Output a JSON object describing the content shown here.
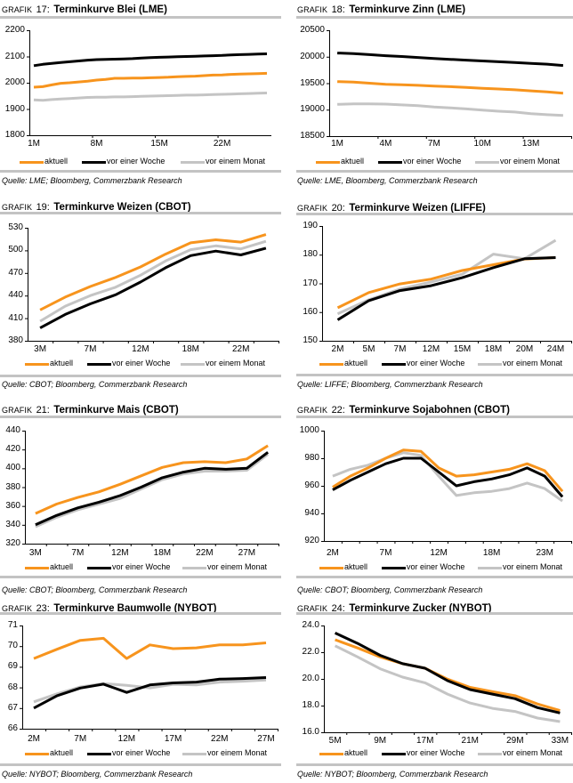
{
  "chart_data": [
    {
      "id": "grafik-17",
      "type": "line",
      "figure_prefix": "GRAFIK",
      "figure_number": "17:",
      "title": "Terminkurve Blei (LME)",
      "xlabel": "",
      "ylabel": "",
      "grid": false,
      "legend": "bottom",
      "categories": [
        "1M",
        "",
        "",
        "",
        "",
        "",
        "",
        "8M",
        "",
        "",
        "",
        "",
        "",
        "",
        "15M",
        "",
        "",
        "",
        "",
        "",
        "",
        "22M",
        "",
        "",
        "",
        "",
        ""
      ],
      "ylim": [
        1800,
        2200
      ],
      "ystep": 100,
      "ytick_labels": [
        "1800",
        "1900",
        "2000",
        "2100",
        "2200"
      ],
      "series": [
        {
          "name": "aktuell",
          "color": "#F7941D",
          "values": [
            1983,
            1985,
            1992,
            1998,
            2000,
            2003,
            2006,
            2010,
            2013,
            2017,
            2017,
            2018,
            2018,
            2019,
            2020,
            2021,
            2023,
            2024,
            2025,
            2027,
            2029,
            2030,
            2032,
            2033,
            2034,
            2035,
            2036
          ]
        },
        {
          "name": "vor einer Woche",
          "color": "#000000",
          "values": [
            2065,
            2070,
            2074,
            2077,
            2080,
            2083,
            2086,
            2088,
            2089,
            2090,
            2091,
            2092,
            2094,
            2096,
            2097,
            2098,
            2099,
            2100,
            2101,
            2102,
            2103,
            2104,
            2106,
            2107,
            2108,
            2109,
            2110
          ]
        },
        {
          "name": "vor einem Monat",
          "color": "#C4C4C4",
          "values": [
            1935,
            1933,
            1936,
            1938,
            1940,
            1942,
            1944,
            1945,
            1945,
            1946,
            1946,
            1947,
            1948,
            1949,
            1950,
            1951,
            1952,
            1953,
            1953,
            1954,
            1955,
            1956,
            1957,
            1958,
            1959,
            1960,
            1961
          ]
        }
      ],
      "source": "Quelle: LME; Bloomberg, Commerzbank Research"
    },
    {
      "id": "grafik-18",
      "type": "line",
      "figure_prefix": "GRAFIK",
      "figure_number": "18:",
      "title": "Terminkurve Zinn (LME)",
      "xlabel": "",
      "ylabel": "",
      "grid": false,
      "legend": "bottom",
      "categories": [
        "1M",
        "",
        "",
        "4M",
        "",
        "",
        "7M",
        "",
        "",
        "10M",
        "",
        "",
        "13M",
        "",
        ""
      ],
      "ylim": [
        18500,
        20500
      ],
      "ystep": 500,
      "ytick_labels": [
        "18500",
        "19000",
        "19500",
        "20000",
        "20500"
      ],
      "series": [
        {
          "name": "aktuell",
          "color": "#F7941D",
          "values": [
            19530,
            19520,
            19500,
            19480,
            19470,
            19460,
            19445,
            19435,
            19420,
            19405,
            19390,
            19375,
            19355,
            19335,
            19310
          ]
        },
        {
          "name": "vor einer Woche",
          "color": "#000000",
          "values": [
            20070,
            20060,
            20040,
            20020,
            20005,
            19985,
            19965,
            19950,
            19935,
            19920,
            19905,
            19890,
            19875,
            19860,
            19835
          ]
        },
        {
          "name": "vor einem Monat",
          "color": "#C4C4C4",
          "values": [
            19100,
            19110,
            19110,
            19105,
            19090,
            19075,
            19050,
            19035,
            19015,
            18990,
            18970,
            18955,
            18925,
            18905,
            18890
          ]
        }
      ],
      "source": "Quelle: LME, Bloomberg, Commerzbank Research"
    },
    {
      "id": "grafik-19",
      "type": "line",
      "figure_prefix": "GRAFIK",
      "figure_number": "19:",
      "title": "Terminkurve Weizen (CBOT)",
      "xlabel": "",
      "ylabel": "",
      "grid": false,
      "legend": "bottom",
      "categories": [
        "3M",
        "",
        "7M",
        "",
        "12M",
        "",
        "18M",
        "",
        "22M",
        ""
      ],
      "ylim": [
        380,
        530
      ],
      "ystep": 30,
      "ytick_labels": [
        "380",
        "410",
        "440",
        "470",
        "500",
        "530"
      ],
      "series": [
        {
          "name": "aktuell",
          "color": "#F7941D",
          "values": [
            421,
            438,
            452,
            464,
            478,
            495,
            510,
            514,
            511,
            521
          ]
        },
        {
          "name": "vor einer Woche",
          "color": "#000000",
          "values": [
            397,
            415,
            429,
            441,
            458,
            477,
            493,
            499,
            494,
            503
          ]
        },
        {
          "name": "vor einem Monat",
          "color": "#C4C4C4",
          "values": [
            406,
            426,
            440,
            451,
            467,
            486,
            501,
            506,
            502,
            512
          ]
        }
      ],
      "source": "Quelle: CBOT; Bloomberg, Commerzbank Research"
    },
    {
      "id": "grafik-20",
      "type": "line",
      "figure_prefix": "GRAFIK",
      "figure_number": "20:",
      "title": "Terminkurve Weizen (LIFFE)",
      "xlabel": "",
      "ylabel": "",
      "grid": false,
      "legend": "bottom",
      "categories": [
        "2M",
        "5M",
        "7M",
        "12M",
        "15M",
        "18M",
        "20M",
        "24M"
      ],
      "ylim": [
        150,
        190
      ],
      "ystep": 10,
      "ytick_labels": [
        "150",
        "160",
        "170",
        "180",
        "190"
      ],
      "series": [
        {
          "name": "aktuell",
          "color": "#F7941D",
          "values": [
            161.5,
            166.8,
            169.8,
            171.5,
            174.5,
            176.5,
            178.5,
            179.0
          ]
        },
        {
          "name": "vor einer Woche",
          "color": "#000000",
          "values": [
            157.3,
            164.0,
            167.5,
            169.2,
            172.0,
            175.5,
            178.6,
            179.0
          ]
        },
        {
          "name": "vor einem Monat",
          "color": "#C4C4C4",
          "values": [
            159.4,
            164.3,
            168.0,
            170.5,
            173.2,
            180.2,
            178.6,
            185.0
          ]
        }
      ],
      "source": "Quelle: LIFFE; Bloomberg, Commerzbank Research"
    },
    {
      "id": "grafik-21",
      "type": "line",
      "figure_prefix": "GRAFIK",
      "figure_number": "21:",
      "title": "Terminkurve Mais (CBOT)",
      "xlabel": "",
      "ylabel": "",
      "grid": false,
      "legend": "bottom",
      "categories": [
        "3M",
        "",
        "7M",
        "",
        "12M",
        "",
        "18M",
        "",
        "22M",
        "",
        "27M",
        ""
      ],
      "ylim": [
        320,
        440
      ],
      "ystep": 20,
      "ytick_labels": [
        "320",
        "340",
        "360",
        "380",
        "400",
        "420",
        "440"
      ],
      "series": [
        {
          "name": "aktuell",
          "color": "#F7941D",
          "values": [
            352,
            362,
            369,
            375,
            383,
            392,
            401,
            406,
            407,
            406,
            410,
            424
          ]
        },
        {
          "name": "vor einer Woche",
          "color": "#000000",
          "values": [
            340,
            350,
            358,
            364,
            371,
            380,
            390,
            396,
            400,
            399,
            400,
            417
          ]
        },
        {
          "name": "vor einem Monat",
          "color": "#C4C4C4",
          "values": [
            338,
            348,
            356,
            362,
            368,
            378,
            388,
            394,
            397,
            397,
            398,
            415
          ]
        }
      ],
      "source": "Quelle: CBOT; Bloomberg, Commerzbank Research"
    },
    {
      "id": "grafik-22",
      "type": "line",
      "figure_prefix": "GRAFIK",
      "figure_number": "22:",
      "title": "Terminkurve Sojabohnen (CBOT)",
      "xlabel": "",
      "ylabel": "",
      "grid": false,
      "legend": "bottom",
      "categories": [
        "2M",
        "",
        "",
        "7M",
        "",
        "",
        "12M",
        "",
        "",
        "18M",
        "",
        "",
        "23M",
        ""
      ],
      "ylim": [
        920,
        1000
      ],
      "ystep": 20,
      "ytick_labels": [
        "920",
        "940",
        "960",
        "980",
        "1000"
      ],
      "series": [
        {
          "name": "aktuell",
          "color": "#F7941D",
          "values": [
            959,
            967,
            973,
            980,
            986,
            985,
            973,
            967,
            968,
            970,
            972,
            976,
            971,
            956
          ]
        },
        {
          "name": "vor einer Woche",
          "color": "#000000",
          "values": [
            957,
            964,
            970,
            976,
            980,
            980,
            970,
            960,
            963,
            965,
            968,
            973,
            967,
            952
          ]
        },
        {
          "name": "vor einem Monat",
          "color": "#C4C4C4",
          "values": [
            967,
            972,
            975,
            980,
            984,
            982,
            967,
            953,
            955,
            956,
            958,
            962,
            958,
            949
          ]
        }
      ],
      "source": "Quelle: CBOT; Bloomberg, Commerzbank Research"
    },
    {
      "id": "grafik-23",
      "type": "line",
      "figure_prefix": "GRAFIK",
      "figure_number": "23:",
      "title": "Terminkurve Baumwolle (NYBOT)",
      "xlabel": "",
      "ylabel": "",
      "grid": false,
      "legend": "bottom",
      "categories": [
        "2M",
        "",
        "7M",
        "",
        "12M",
        "",
        "17M",
        "",
        "22M",
        "",
        "27M"
      ],
      "ylim": [
        66,
        71
      ],
      "ystep": 1,
      "ytick_labels": [
        "66",
        "67",
        "68",
        "69",
        "70",
        "71"
      ],
      "series": [
        {
          "name": "aktuell",
          "color": "#F7941D",
          "values": [
            69.4,
            69.85,
            70.28,
            70.38,
            69.4,
            70.06,
            69.88,
            69.92,
            70.06,
            70.06,
            70.16
          ]
        },
        {
          "name": "vor einer Woche",
          "color": "#000000",
          "values": [
            67.0,
            67.6,
            67.97,
            68.16,
            67.76,
            68.12,
            68.22,
            68.26,
            68.4,
            68.43,
            68.48
          ]
        },
        {
          "name": "vor einem Monat",
          "color": "#C4C4C4",
          "values": [
            67.3,
            67.69,
            68.02,
            68.19,
            68.1,
            67.98,
            68.15,
            68.12,
            68.26,
            68.3,
            68.36
          ]
        }
      ],
      "source": "Quelle: NYBOT; Bloomberg, Commerzbank Research"
    },
    {
      "id": "grafik-24",
      "type": "line",
      "figure_prefix": "GRAFIK",
      "figure_number": "24:",
      "title": "Terminkurve Zucker (NYBOT)",
      "xlabel": "",
      "ylabel": "",
      "grid": false,
      "legend": "bottom",
      "categories": [
        "5M",
        "",
        "9M",
        "",
        "17M",
        "",
        "21M",
        "",
        "29M",
        "",
        "33M"
      ],
      "ylim": [
        16.0,
        24.0
      ],
      "ystep": 2.0,
      "ytick_labels": [
        "16.0",
        "18.0",
        "20.0",
        "22.0",
        "24.0"
      ],
      "series": [
        {
          "name": "aktuell",
          "color": "#F7941D",
          "values": [
            22.93,
            22.32,
            21.65,
            21.14,
            20.8,
            19.98,
            19.37,
            19.04,
            18.75,
            18.12,
            17.63
          ]
        },
        {
          "name": "vor einer Woche",
          "color": "#000000",
          "values": [
            23.44,
            22.66,
            21.77,
            21.14,
            20.8,
            19.87,
            19.2,
            18.86,
            18.52,
            17.85,
            17.45
          ]
        },
        {
          "name": "vor einem Monat",
          "color": "#C4C4C4",
          "values": [
            22.48,
            21.65,
            20.76,
            20.13,
            19.71,
            18.86,
            18.19,
            17.79,
            17.56,
            17.07,
            16.8
          ]
        }
      ],
      "source": "Quelle: NYBOT; Bloomberg, Commerzbank Research"
    }
  ]
}
